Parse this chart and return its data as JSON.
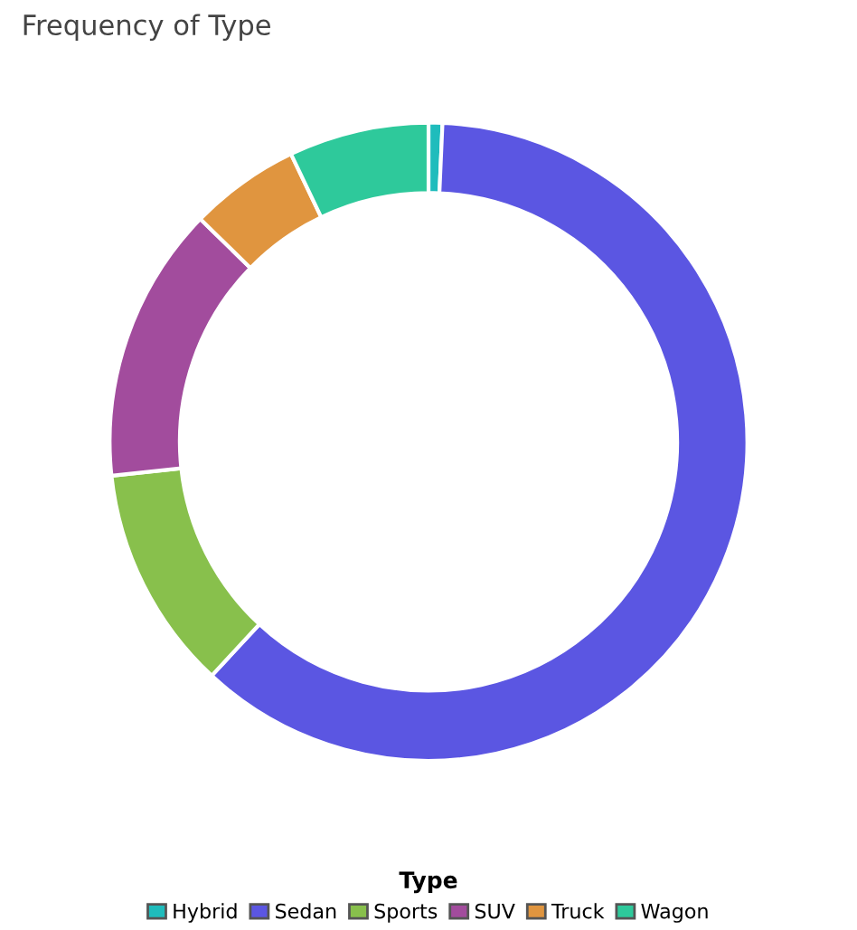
{
  "chart_data": {
    "type": "donut",
    "title": "Frequency of Type",
    "legend_title": "Type",
    "legend": "bottom",
    "categories": [
      "Hybrid",
      "Sedan",
      "Sports",
      "SUV",
      "Truck",
      "Wagon"
    ],
    "values": [
      0.7,
      61.2,
      11.4,
      14.0,
      5.6,
      7.1
    ],
    "colors": [
      "#1fbcbc",
      "#5b56e2",
      "#88c04c",
      "#a24c9d",
      "#e0953f",
      "#2ec99b"
    ]
  }
}
